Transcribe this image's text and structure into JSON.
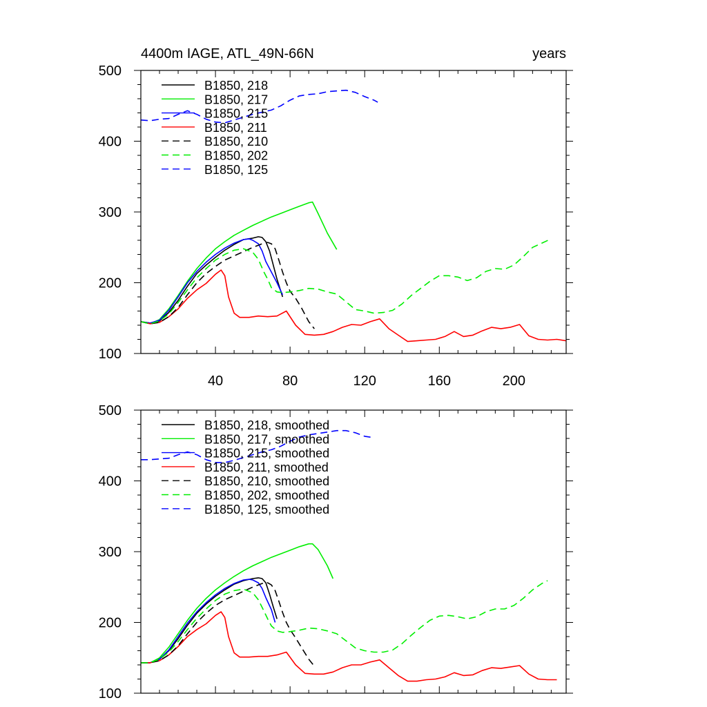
{
  "chart_data": [
    {
      "type": "line",
      "title_left": "4400m IAGE, ATL_49N-66N",
      "title_right": "years",
      "xlim": [
        0,
        228
      ],
      "ylim": [
        100,
        500
      ],
      "xticks": [
        40,
        80,
        120,
        160,
        200
      ],
      "yticks": [
        100,
        200,
        300,
        400,
        500
      ],
      "show_x_tick_labels": true,
      "series": [
        {
          "name": "B1850, 218",
          "color": "#000000",
          "dash": "solid",
          "x": [
            0,
            5,
            10,
            15,
            20,
            25,
            30,
            35,
            40,
            45,
            50,
            55,
            60,
            63,
            65,
            67,
            69,
            71,
            73,
            76
          ],
          "y": [
            145,
            143,
            146,
            158,
            175,
            195,
            213,
            225,
            236,
            246,
            254,
            261,
            263,
            265,
            264,
            258,
            245,
            225,
            205,
            180
          ]
        },
        {
          "name": "B1850, 217",
          "color": "#00ee00",
          "dash": "solid",
          "x": [
            0,
            5,
            10,
            15,
            20,
            25,
            30,
            35,
            40,
            45,
            50,
            55,
            60,
            65,
            70,
            75,
            80,
            85,
            90,
            92,
            95,
            100,
            105
          ],
          "y": [
            145,
            142,
            148,
            163,
            182,
            202,
            220,
            235,
            248,
            258,
            267,
            274,
            281,
            287,
            293,
            298,
            303,
            308,
            313,
            314,
            298,
            270,
            247
          ]
        },
        {
          "name": "B1850, 215",
          "color": "#0000ff",
          "dash": "solid",
          "x": [
            0,
            5,
            10,
            15,
            20,
            25,
            30,
            35,
            40,
            45,
            50,
            55,
            58,
            60,
            63,
            65,
            67,
            70,
            73,
            76
          ],
          "y": [
            145,
            143,
            147,
            161,
            180,
            200,
            216,
            229,
            240,
            249,
            256,
            261,
            262,
            260,
            255,
            245,
            230,
            215,
            200,
            183
          ]
        },
        {
          "name": "B1850, 211",
          "color": "#ff0000",
          "dash": "solid",
          "x": [
            0,
            5,
            10,
            15,
            20,
            25,
            30,
            35,
            40,
            43,
            45,
            47,
            50,
            53,
            58,
            63,
            68,
            73,
            78,
            83,
            88,
            93,
            98,
            103,
            108,
            113,
            118,
            123,
            128,
            133,
            138,
            143,
            148,
            153,
            158,
            163,
            168,
            173,
            178,
            183,
            188,
            193,
            198,
            203,
            208,
            213,
            218,
            223,
            228
          ],
          "y": [
            145,
            142,
            144,
            152,
            163,
            178,
            190,
            199,
            212,
            218,
            210,
            180,
            157,
            151,
            151,
            153,
            152,
            153,
            160,
            140,
            127,
            126,
            127,
            131,
            137,
            141,
            140,
            145,
            149,
            135,
            126,
            117,
            118,
            119,
            120,
            124,
            131,
            124,
            126,
            132,
            137,
            135,
            137,
            141,
            125,
            120,
            119,
            120,
            118
          ]
        },
        {
          "name": "B1850, 210",
          "color": "#000000",
          "dash": "dashed",
          "x": [
            0,
            5,
            10,
            15,
            20,
            25,
            30,
            35,
            40,
            45,
            50,
            55,
            60,
            65,
            68,
            70,
            72,
            74,
            76,
            78,
            80,
            83,
            86,
            90,
            93
          ],
          "y": [
            145,
            142,
            144,
            152,
            165,
            183,
            200,
            213,
            223,
            232,
            238,
            244,
            250,
            255,
            257,
            255,
            248,
            232,
            215,
            200,
            188,
            178,
            165,
            145,
            135
          ]
        },
        {
          "name": "B1850, 202",
          "color": "#00ee00",
          "dash": "dashed",
          "x": [
            0,
            5,
            10,
            15,
            20,
            25,
            30,
            35,
            40,
            45,
            50,
            55,
            60,
            63,
            66,
            68,
            70,
            73,
            76,
            80,
            85,
            90,
            95,
            100,
            105,
            110,
            115,
            120,
            125,
            130,
            135,
            140,
            145,
            150,
            155,
            160,
            165,
            170,
            175,
            180,
            185,
            190,
            195,
            200,
            205,
            210,
            215,
            220
          ],
          "y": [
            145,
            142,
            146,
            156,
            172,
            190,
            207,
            220,
            232,
            240,
            246,
            248,
            243,
            233,
            215,
            205,
            193,
            187,
            186,
            187,
            189,
            192,
            191,
            187,
            184,
            173,
            162,
            160,
            157,
            158,
            161,
            170,
            182,
            192,
            202,
            210,
            210,
            208,
            203,
            207,
            216,
            220,
            219,
            225,
            237,
            250,
            256,
            262
          ]
        },
        {
          "name": "B1850, 125",
          "color": "#0000ff",
          "dash": "dashed",
          "x": [
            0,
            5,
            10,
            15,
            20,
            25,
            30,
            35,
            40,
            45,
            50,
            55,
            60,
            65,
            70,
            75,
            80,
            85,
            90,
            95,
            100,
            105,
            110,
            115,
            120,
            125,
            127
          ],
          "y": [
            430,
            429,
            431,
            432,
            438,
            443,
            438,
            431,
            427,
            426,
            430,
            434,
            438,
            441,
            444,
            450,
            458,
            464,
            466,
            467,
            470,
            471,
            472,
            469,
            463,
            458,
            455
          ]
        }
      ]
    },
    {
      "type": "line",
      "xlim": [
        0,
        228
      ],
      "ylim": [
        100,
        500
      ],
      "xticks": [
        40,
        80,
        120,
        160,
        200
      ],
      "yticks": [
        100,
        200,
        300,
        400,
        500
      ],
      "show_x_tick_labels": false,
      "series": [
        {
          "name": "B1850, 218, smoothed",
          "color": "#000000",
          "dash": "solid",
          "x": [
            0,
            5,
            10,
            15,
            20,
            25,
            30,
            35,
            40,
            45,
            50,
            55,
            60,
            63,
            65,
            67,
            69,
            71,
            73
          ],
          "y": [
            143,
            143,
            148,
            160,
            177,
            196,
            213,
            226,
            237,
            246,
            254,
            259,
            262,
            263,
            262,
            256,
            240,
            222,
            205
          ]
        },
        {
          "name": "B1850, 217, smoothed",
          "color": "#00ee00",
          "dash": "solid",
          "x": [
            0,
            5,
            10,
            15,
            20,
            25,
            30,
            35,
            40,
            45,
            50,
            55,
            60,
            65,
            70,
            75,
            80,
            85,
            90,
            92,
            95,
            100,
            103
          ],
          "y": [
            143,
            143,
            150,
            165,
            184,
            203,
            220,
            234,
            246,
            256,
            265,
            273,
            280,
            286,
            292,
            297,
            302,
            307,
            311,
            311,
            303,
            280,
            262
          ]
        },
        {
          "name": "B1850, 215, smoothed",
          "color": "#0000ff",
          "dash": "solid",
          "x": [
            0,
            5,
            10,
            15,
            20,
            25,
            30,
            35,
            40,
            45,
            50,
            55,
            58,
            60,
            63,
            65,
            67,
            70,
            72
          ],
          "y": [
            143,
            143,
            148,
            161,
            180,
            199,
            215,
            228,
            239,
            248,
            255,
            260,
            261,
            260,
            256,
            248,
            235,
            218,
            200
          ]
        },
        {
          "name": "B1850, 211, smoothed",
          "color": "#ff0000",
          "dash": "solid",
          "x": [
            0,
            5,
            10,
            15,
            20,
            25,
            30,
            35,
            40,
            43,
            45,
            47,
            50,
            53,
            58,
            63,
            68,
            73,
            78,
            83,
            88,
            93,
            98,
            103,
            108,
            113,
            118,
            123,
            128,
            133,
            138,
            143,
            148,
            153,
            158,
            163,
            168,
            173,
            178,
            183,
            188,
            193,
            198,
            203,
            208,
            213,
            218,
            223
          ],
          "y": [
            143,
            143,
            146,
            154,
            166,
            180,
            190,
            198,
            210,
            215,
            207,
            180,
            157,
            151,
            151,
            152,
            152,
            154,
            158,
            140,
            128,
            127,
            127,
            130,
            136,
            140,
            140,
            144,
            147,
            136,
            125,
            117,
            117,
            119,
            120,
            123,
            129,
            125,
            126,
            132,
            136,
            135,
            137,
            139,
            127,
            120,
            119,
            119
          ]
        },
        {
          "name": "B1850, 210, smoothed",
          "color": "#000000",
          "dash": "dashed",
          "x": [
            0,
            5,
            10,
            15,
            20,
            25,
            30,
            35,
            40,
            45,
            50,
            55,
            60,
            65,
            68,
            70,
            72,
            74,
            76,
            78,
            80,
            83,
            86,
            90,
            93
          ],
          "y": [
            143,
            143,
            146,
            154,
            167,
            184,
            200,
            213,
            224,
            232,
            238,
            244,
            250,
            255,
            256,
            253,
            245,
            230,
            214,
            200,
            190,
            178,
            165,
            148,
            138
          ]
        },
        {
          "name": "B1850, 202, smoothed",
          "color": "#00ee00",
          "dash": "dashed",
          "x": [
            0,
            5,
            10,
            15,
            20,
            25,
            30,
            35,
            40,
            45,
            50,
            55,
            60,
            63,
            66,
            68,
            70,
            73,
            76,
            80,
            85,
            90,
            95,
            100,
            105,
            110,
            115,
            120,
            125,
            130,
            135,
            140,
            145,
            150,
            155,
            160,
            165,
            170,
            175,
            180,
            185,
            190,
            195,
            200,
            205,
            210,
            215,
            218
          ],
          "y": [
            143,
            143,
            148,
            158,
            173,
            190,
            206,
            219,
            231,
            240,
            245,
            247,
            242,
            232,
            216,
            205,
            195,
            188,
            186,
            187,
            189,
            192,
            191,
            188,
            184,
            174,
            164,
            160,
            158,
            158,
            161,
            170,
            182,
            193,
            203,
            209,
            210,
            208,
            205,
            208,
            215,
            219,
            219,
            224,
            234,
            246,
            255,
            259
          ]
        },
        {
          "name": "B1850, 125, smoothed",
          "color": "#0000ff",
          "dash": "dashed",
          "x": [
            0,
            5,
            10,
            15,
            20,
            25,
            30,
            35,
            40,
            45,
            50,
            55,
            60,
            65,
            70,
            75,
            80,
            85,
            90,
            95,
            100,
            105,
            110,
            115,
            120,
            125
          ],
          "y": [
            430,
            430,
            431,
            432,
            437,
            441,
            437,
            430,
            426,
            426,
            429,
            433,
            437,
            441,
            444,
            449,
            456,
            462,
            465,
            467,
            469,
            471,
            471,
            468,
            463,
            461
          ]
        }
      ]
    }
  ]
}
